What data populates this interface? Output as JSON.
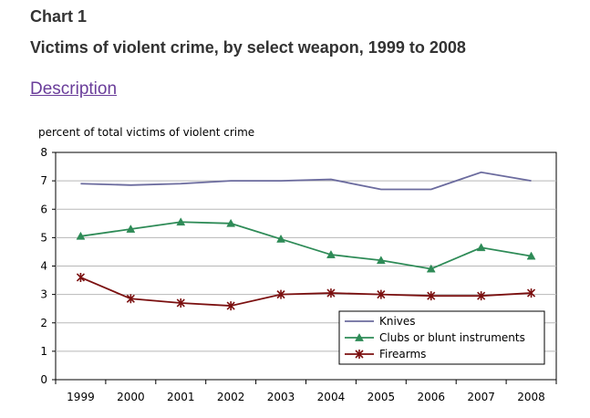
{
  "header": {
    "chart_number": "Chart 1",
    "title": "Victims of violent crime, by select weapon, 1999 to 2008",
    "description_link": "Description"
  },
  "chart_data": {
    "type": "line",
    "title": "Victims of violent crime, by select weapon, 1999 to 2008",
    "ylabel": "percent of total victims of violent crime",
    "xlabel": "",
    "categories": [
      "1999",
      "2000",
      "2001",
      "2002",
      "2003",
      "2004",
      "2005",
      "2006",
      "2007",
      "2008"
    ],
    "ylim": [
      0,
      8
    ],
    "yticks": [
      "0",
      "1",
      "2",
      "3",
      "4",
      "5",
      "6",
      "7",
      "8"
    ],
    "grid": true,
    "legend_position": "bottom-right",
    "series": [
      {
        "name": "Knives",
        "color": "#6b6b9e",
        "marker": "none",
        "values": [
          6.9,
          6.85,
          6.9,
          7.0,
          7.0,
          7.05,
          6.7,
          6.7,
          7.3,
          7.0
        ]
      },
      {
        "name": "Clubs or blunt instruments",
        "color": "#2e8b57",
        "marker": "triangle",
        "values": [
          5.05,
          5.3,
          5.55,
          5.5,
          4.95,
          4.4,
          4.2,
          3.9,
          4.65,
          4.35
        ]
      },
      {
        "name": "Firearms",
        "color": "#7b1010",
        "marker": "star",
        "values": [
          3.6,
          2.85,
          2.7,
          2.6,
          3.0,
          3.05,
          3.0,
          2.95,
          2.95,
          3.05
        ]
      }
    ]
  }
}
